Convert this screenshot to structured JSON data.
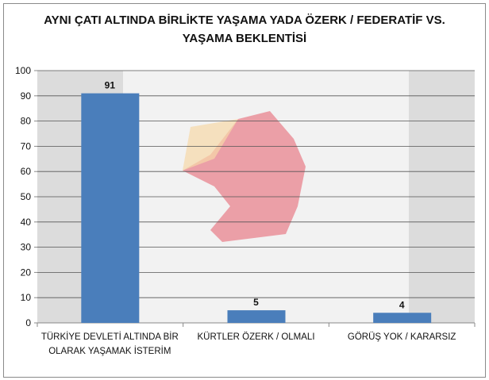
{
  "chart_data": {
    "type": "bar",
    "title": "AYNI ÇATI ALTINDA BİRLİKTE YAŞAMA YADA ÖZERK / FEDERATİF VS. YAŞAMA BEKLENTİSİ",
    "title_lines": [
      "AYNI ÇATI ALTINDA BİRLİKTE YAŞAMA YADA ÖZERK / FEDERATİF VS.",
      "YAŞAMA BEKLENTİSİ"
    ],
    "categories": [
      [
        "TÜRKİYE DEVLETİ ALTINDA BİR",
        "OLARAK YAŞAMAK İSTERİM"
      ],
      [
        "KÜRTLER ÖZERK / OLMALI"
      ],
      [
        "GÖRÜŞ YOK / KARARSIZ"
      ]
    ],
    "values": [
      91,
      5,
      4
    ],
    "data_labels": [
      "91",
      "5",
      "4"
    ],
    "ylim": [
      0,
      100
    ],
    "yticks": [
      0,
      10,
      20,
      30,
      40,
      50,
      60,
      70,
      80,
      90,
      100
    ],
    "grid": true,
    "bar_color": "#4a7ebb",
    "xlabel": "",
    "ylabel": ""
  }
}
